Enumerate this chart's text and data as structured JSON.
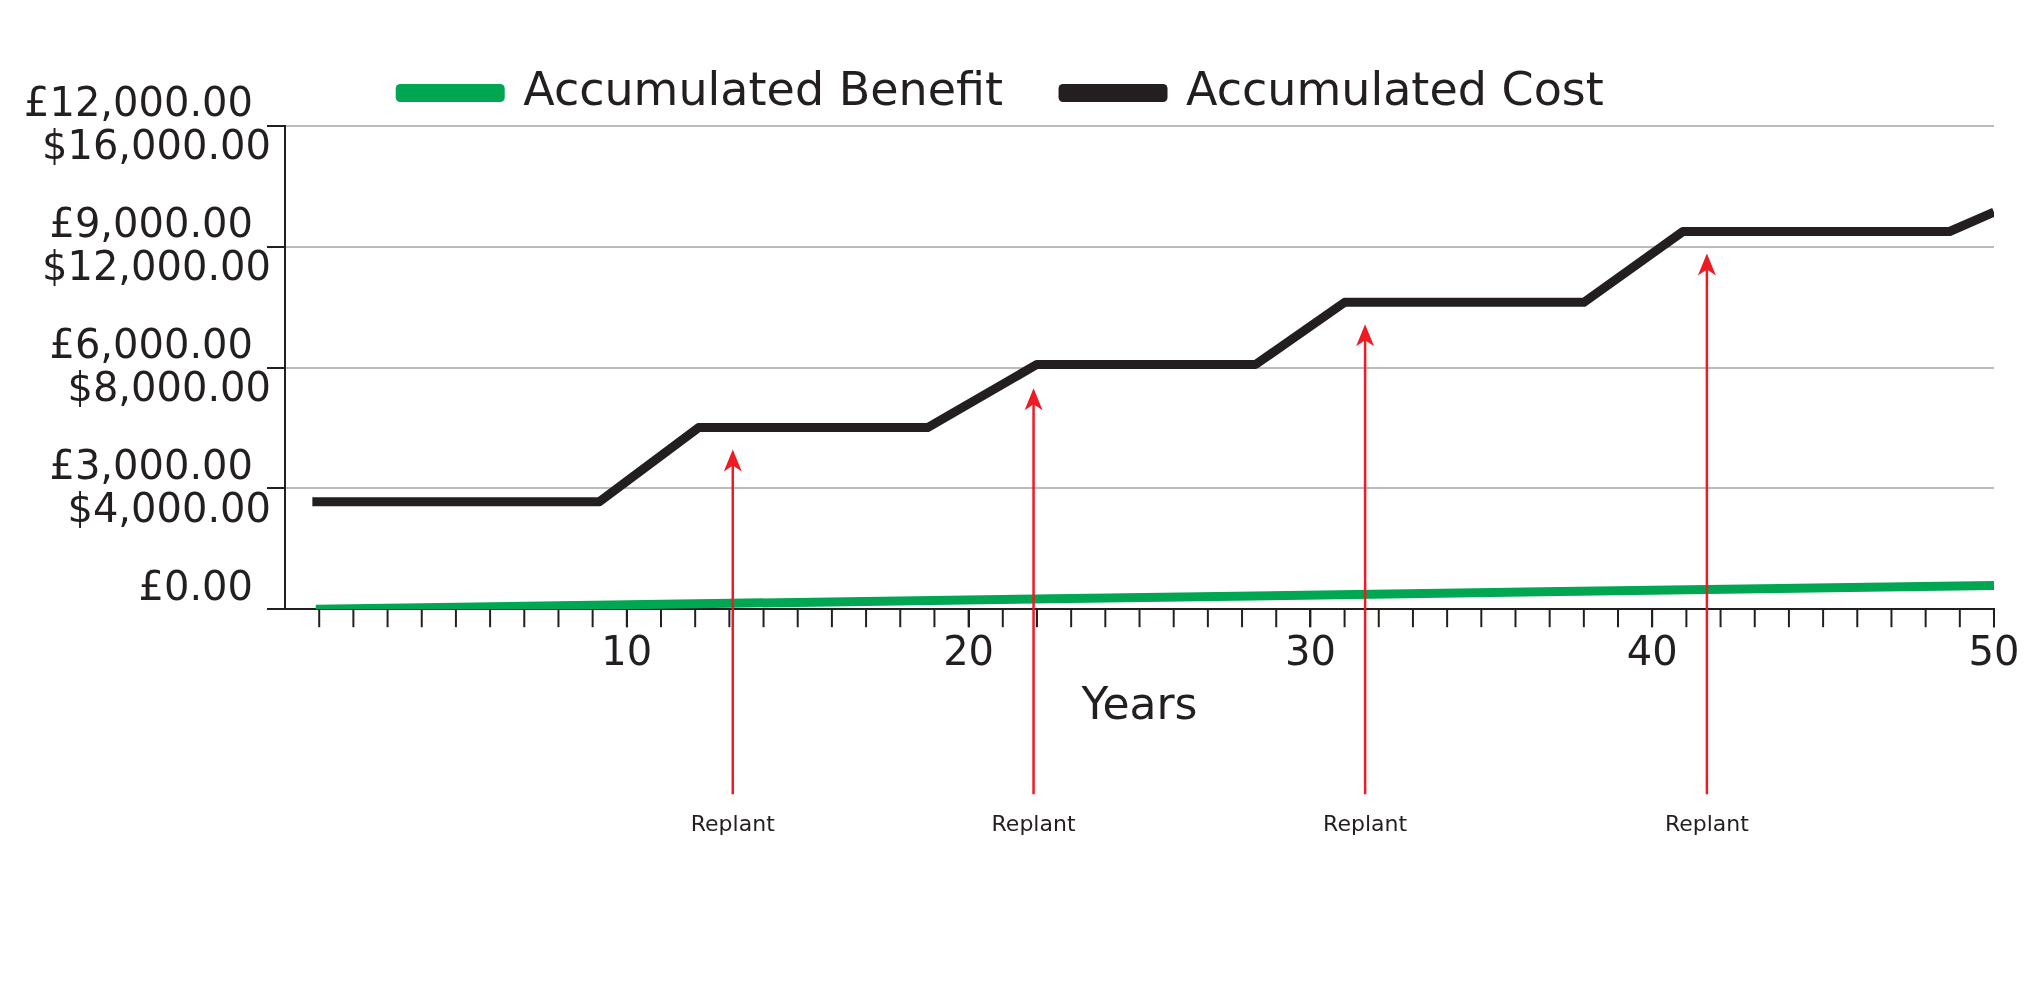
{
  "chart_data": {
    "type": "line",
    "xlabel": "Years",
    "legend": "top",
    "series": [
      {
        "name": "Accumulated Benefit",
        "color": "#00a651",
        "x": [
          0.9,
          50
        ],
        "values": [
          0,
          590
        ]
      },
      {
        "name": "Accumulated Cost",
        "color": "#231f20",
        "x": [
          0.8,
          9.2,
          12.1,
          18.8,
          22,
          28.4,
          31,
          38,
          40.9,
          48.7,
          50
        ],
        "values": [
          2670,
          2670,
          4510,
          4510,
          6080,
          6080,
          7620,
          7620,
          9380,
          9380,
          9860
        ]
      }
    ],
    "xlim": [
      0,
      50
    ],
    "xticks": [
      10,
      20,
      30,
      40,
      50
    ],
    "ylim": [
      0,
      12000
    ],
    "yticks": [
      {
        "value": 0,
        "label": "£0.00"
      },
      {
        "value": 3000,
        "label": "£3,000.00"
      },
      {
        "value": 6000,
        "label": "£6,000.00"
      },
      {
        "value": 9000,
        "label": "£9,000.00"
      },
      {
        "value": 12000,
        "label": "£12,000.00"
      }
    ],
    "y2lim": [
      0,
      16000
    ],
    "y2ticks": [
      {
        "value": 4000,
        "label": "$4,000.00"
      },
      {
        "value": 8000,
        "label": "$8,000.00"
      },
      {
        "value": 12000,
        "label": "$12,000.00"
      },
      {
        "value": 16000,
        "label": "$16,000.00"
      }
    ],
    "grid": "y",
    "line_style": "solid",
    "marker": "none",
    "ref_lines": [
      {
        "axis": "x",
        "value": 13.1,
        "label": "Replant",
        "color": "#ed1c24"
      },
      {
        "axis": "x",
        "value": 21.9,
        "label": "Replant",
        "color": "#ed1c24"
      },
      {
        "axis": "x",
        "value": 31.6,
        "label": "Replant",
        "color": "#ed1c24"
      },
      {
        "axis": "x",
        "value": 41.6,
        "label": "Replant",
        "color": "#ed1c24"
      }
    ]
  }
}
